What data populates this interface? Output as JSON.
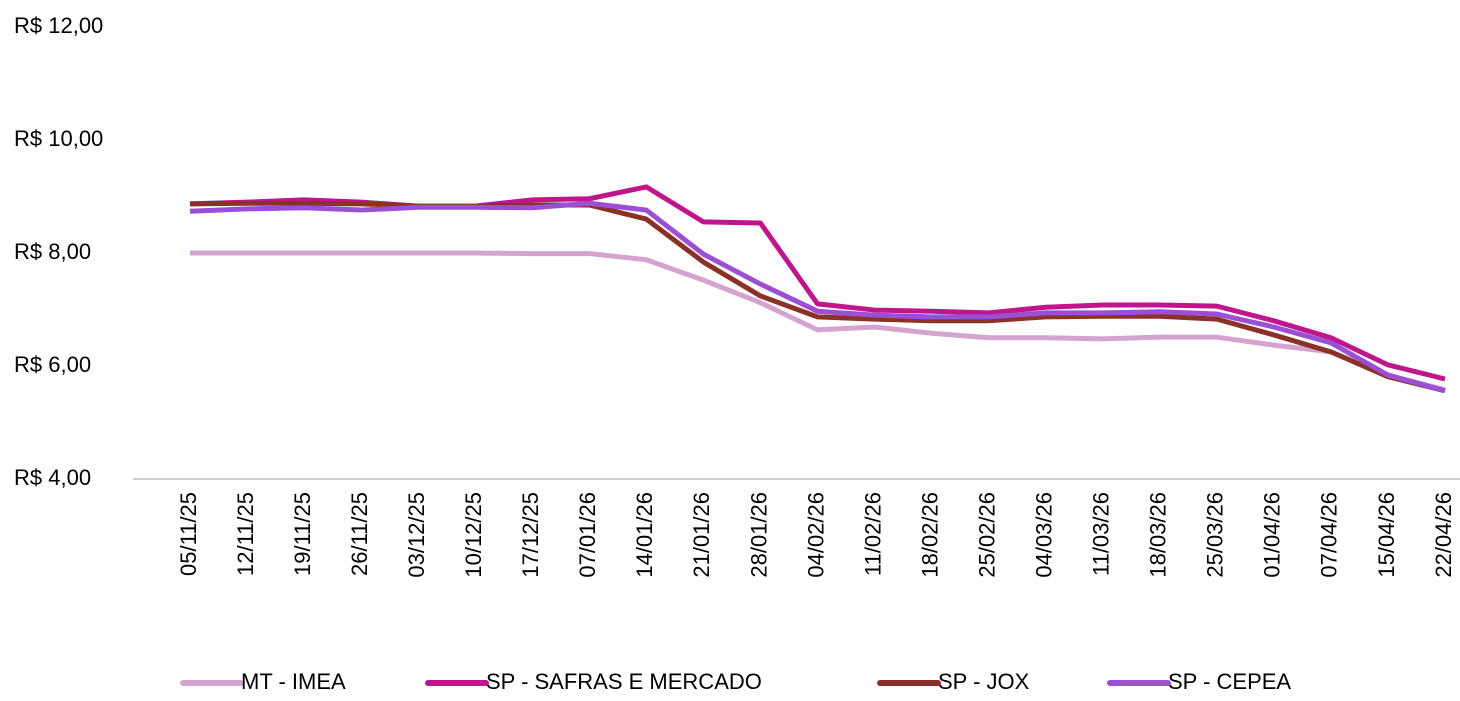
{
  "chart_data": {
    "type": "line",
    "categories": [
      "05/11/25",
      "12/11/25",
      "19/11/25",
      "26/11/25",
      "03/12/25",
      "10/12/25",
      "17/12/25",
      "07/01/26",
      "14/01/26",
      "21/01/26",
      "28/01/26",
      "04/02/26",
      "11/02/26",
      "18/02/26",
      "25/02/26",
      "04/03/26",
      "11/03/26",
      "18/03/26",
      "25/03/26",
      "01/04/26",
      "07/04/26",
      "15/04/26",
      "22/04/26"
    ],
    "series": [
      {
        "name": "MT - IMEA",
        "color": "#d4a3cf",
        "values": [
          8.0,
          8.0,
          8.0,
          8.0,
          8.0,
          8.0,
          7.99,
          7.99,
          7.88,
          7.52,
          7.12,
          6.64,
          6.69,
          6.58,
          6.5,
          6.5,
          6.48,
          6.51,
          6.51,
          6.37,
          6.25,
          5.84,
          5.58
        ]
      },
      {
        "name": "SP - SAFRAS E MERCADO",
        "color": "#c0168c",
        "values": [
          8.87,
          8.9,
          8.94,
          8.9,
          8.83,
          8.83,
          8.94,
          8.96,
          9.17,
          8.55,
          8.53,
          7.1,
          6.99,
          6.97,
          6.94,
          7.04,
          7.08,
          7.08,
          7.06,
          6.8,
          6.5,
          6.02,
          5.77
        ]
      },
      {
        "name": "SP - JOX",
        "color": "#8b3228",
        "values": [
          8.87,
          8.88,
          8.88,
          8.87,
          8.83,
          8.83,
          8.85,
          8.85,
          8.6,
          7.84,
          7.24,
          6.87,
          6.83,
          6.8,
          6.8,
          6.87,
          6.88,
          6.88,
          6.83,
          6.55,
          6.25,
          5.81,
          5.56
        ]
      },
      {
        "name": "SP - CEPEA",
        "color": "#9b4fd6",
        "values": [
          8.74,
          8.78,
          8.8,
          8.76,
          8.81,
          8.81,
          8.8,
          8.88,
          8.76,
          7.98,
          7.45,
          6.97,
          6.9,
          6.87,
          6.87,
          6.94,
          6.94,
          6.96,
          6.92,
          6.69,
          6.41,
          5.84,
          5.56
        ]
      }
    ],
    "ylim": [
      4,
      12
    ],
    "yticks": [
      {
        "value": 4,
        "label": "R$ 4,00"
      },
      {
        "value": 6,
        "label": "R$ 6,00"
      },
      {
        "value": 8,
        "label": "R$ 8,00"
      },
      {
        "value": 10,
        "label": "R$ 10,00"
      },
      {
        "value": 12,
        "label": "R$ 12,00"
      }
    ],
    "grid": false,
    "legend_position": "bottom"
  }
}
